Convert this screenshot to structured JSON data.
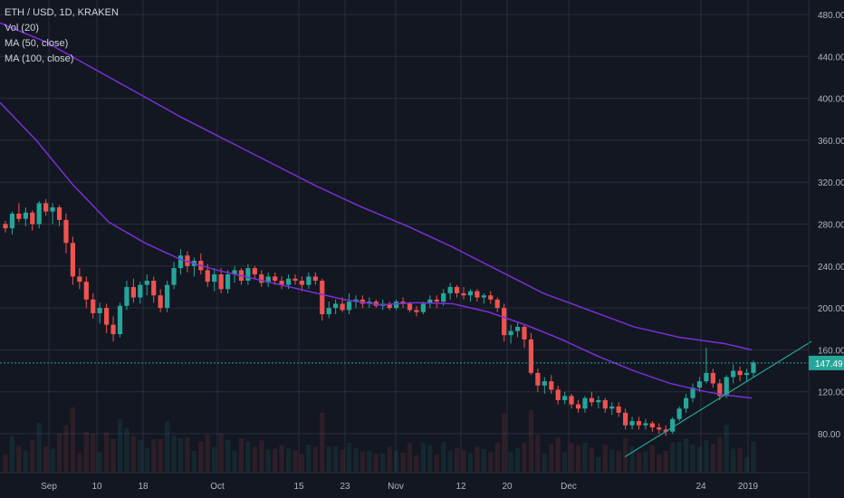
{
  "legend": {
    "symbol_line": "ETH / USD, 1D, KRAKEN",
    "vol_line": "Vol (20)",
    "ma50_line": "MA (50, close)",
    "ma100_line": "MA (100, close)"
  },
  "colors": {
    "background": "#131722",
    "grid": "#2a2e39",
    "up": "#26a69a",
    "down": "#ef5350",
    "ma": "#7b2fd6",
    "trendline": "#26a69a",
    "price_label": "#26a69a",
    "axis_text": "#b2b5be"
  },
  "chart_data": {
    "type": "candlestick",
    "y_axis_ticks": [
      "480.00",
      "440.00",
      "400.00",
      "360.00",
      "320.00",
      "280.00",
      "240.00",
      "200.00",
      "160.00",
      "120.00",
      "80.00"
    ],
    "x_axis_ticks": [
      "Sep",
      "10",
      "18",
      "Oct",
      "15",
      "23",
      "Nov",
      "12",
      "20",
      "Dec",
      "24",
      "2019"
    ],
    "ylim": [
      55,
      495
    ],
    "last_price": "147.49",
    "candles": [
      [
        280,
        283,
        272,
        276
      ],
      [
        276,
        292,
        270,
        290
      ],
      [
        290,
        300,
        282,
        285
      ],
      [
        285,
        296,
        278,
        291
      ],
      [
        291,
        293,
        274,
        280
      ],
      [
        280,
        302,
        276,
        300
      ],
      [
        300,
        304,
        288,
        292
      ],
      [
        292,
        300,
        280,
        296
      ],
      [
        296,
        298,
        278,
        284
      ],
      [
        284,
        290,
        252,
        262
      ],
      [
        262,
        268,
        222,
        230
      ],
      [
        230,
        238,
        218,
        225
      ],
      [
        225,
        230,
        200,
        208
      ],
      [
        208,
        214,
        190,
        195
      ],
      [
        195,
        205,
        185,
        200
      ],
      [
        200,
        204,
        176,
        184
      ],
      [
        184,
        192,
        168,
        175
      ],
      [
        175,
        205,
        172,
        202
      ],
      [
        202,
        226,
        198,
        220
      ],
      [
        220,
        228,
        205,
        210
      ],
      [
        210,
        225,
        204,
        222
      ],
      [
        222,
        232,
        212,
        226
      ],
      [
        226,
        230,
        205,
        212
      ],
      [
        212,
        218,
        196,
        200
      ],
      [
        200,
        226,
        196,
        222
      ],
      [
        222,
        244,
        218,
        238
      ],
      [
        238,
        256,
        232,
        250
      ],
      [
        250,
        254,
        234,
        240
      ],
      [
        240,
        248,
        230,
        245
      ],
      [
        245,
        252,
        232,
        236
      ],
      [
        236,
        242,
        220,
        225
      ],
      [
        225,
        238,
        216,
        232
      ],
      [
        232,
        238,
        214,
        218
      ],
      [
        218,
        236,
        214,
        232
      ],
      [
        232,
        240,
        224,
        236
      ],
      [
        236,
        238,
        222,
        226
      ],
      [
        226,
        242,
        222,
        238
      ],
      [
        238,
        240,
        228,
        232
      ],
      [
        232,
        236,
        220,
        224
      ],
      [
        224,
        234,
        220,
        230
      ],
      [
        230,
        234,
        222,
        226
      ],
      [
        226,
        230,
        218,
        222
      ],
      [
        222,
        232,
        218,
        228
      ],
      [
        228,
        232,
        222,
        226
      ],
      [
        226,
        230,
        216,
        222
      ],
      [
        222,
        234,
        218,
        230
      ],
      [
        230,
        234,
        222,
        226
      ],
      [
        226,
        228,
        188,
        194
      ],
      [
        194,
        206,
        190,
        200
      ],
      [
        200,
        208,
        194,
        204
      ],
      [
        204,
        210,
        196,
        198
      ],
      [
        198,
        214,
        194,
        206
      ],
      [
        206,
        212,
        200,
        208
      ],
      [
        208,
        212,
        200,
        204
      ],
      [
        204,
        210,
        200,
        206
      ],
      [
        206,
        208,
        200,
        202
      ],
      [
        202,
        208,
        198,
        204
      ],
      [
        204,
        206,
        198,
        200
      ],
      [
        200,
        208,
        198,
        206
      ],
      [
        206,
        210,
        200,
        204
      ],
      [
        204,
        206,
        196,
        198
      ],
      [
        198,
        202,
        192,
        196
      ],
      [
        196,
        206,
        194,
        204
      ],
      [
        204,
        212,
        200,
        208
      ],
      [
        208,
        212,
        200,
        206
      ],
      [
        206,
        218,
        202,
        214
      ],
      [
        214,
        224,
        208,
        220
      ],
      [
        220,
        222,
        210,
        214
      ],
      [
        214,
        220,
        208,
        212
      ],
      [
        212,
        218,
        206,
        216
      ],
      [
        216,
        218,
        206,
        210
      ],
      [
        210,
        214,
        204,
        212
      ],
      [
        212,
        216,
        204,
        208
      ],
      [
        208,
        210,
        196,
        200
      ],
      [
        200,
        204,
        168,
        174
      ],
      [
        174,
        184,
        166,
        178
      ],
      [
        178,
        186,
        172,
        182
      ],
      [
        182,
        184,
        162,
        170
      ],
      [
        170,
        176,
        136,
        138
      ],
      [
        138,
        142,
        120,
        126
      ],
      [
        126,
        134,
        118,
        130
      ],
      [
        130,
        136,
        118,
        122
      ],
      [
        122,
        126,
        108,
        112
      ],
      [
        112,
        120,
        108,
        116
      ],
      [
        116,
        118,
        104,
        108
      ],
      [
        108,
        112,
        100,
        104
      ],
      [
        104,
        116,
        100,
        114
      ],
      [
        114,
        120,
        106,
        110
      ],
      [
        110,
        116,
        104,
        112
      ],
      [
        112,
        114,
        100,
        104
      ],
      [
        104,
        110,
        98,
        106
      ],
      [
        106,
        110,
        96,
        100
      ],
      [
        100,
        104,
        84,
        88
      ],
      [
        88,
        96,
        84,
        92
      ],
      [
        92,
        96,
        84,
        88
      ],
      [
        88,
        94,
        84,
        90
      ],
      [
        90,
        92,
        82,
        86
      ],
      [
        86,
        90,
        80,
        84
      ],
      [
        84,
        88,
        78,
        82
      ],
      [
        82,
        96,
        80,
        94
      ],
      [
        94,
        106,
        92,
        104
      ],
      [
        104,
        118,
        100,
        114
      ],
      [
        114,
        128,
        110,
        124
      ],
      [
        124,
        134,
        120,
        130
      ],
      [
        130,
        162,
        128,
        138
      ],
      [
        138,
        142,
        124,
        128
      ],
      [
        128,
        132,
        112,
        116
      ],
      [
        116,
        136,
        114,
        134
      ],
      [
        134,
        146,
        128,
        140
      ],
      [
        140,
        144,
        130,
        136
      ],
      [
        136,
        142,
        130,
        138
      ],
      [
        138,
        150,
        134,
        148
      ]
    ],
    "ma50": [
      [
        0,
        396
      ],
      [
        40,
        360
      ],
      [
        80,
        318
      ],
      [
        120,
        282
      ],
      [
        160,
        262
      ],
      [
        200,
        246
      ],
      [
        240,
        236
      ],
      [
        280,
        228
      ],
      [
        330,
        218
      ],
      [
        380,
        208
      ],
      [
        420,
        203
      ],
      [
        460,
        205
      ],
      [
        500,
        204
      ],
      [
        540,
        196
      ],
      [
        580,
        184
      ],
      [
        620,
        170
      ],
      [
        660,
        154
      ],
      [
        700,
        140
      ],
      [
        740,
        128
      ],
      [
        780,
        120
      ],
      [
        800,
        117
      ],
      [
        830,
        114
      ]
    ],
    "ma100": [
      [
        0,
        472
      ],
      [
        50,
        454
      ],
      [
        100,
        430
      ],
      [
        150,
        406
      ],
      [
        200,
        382
      ],
      [
        250,
        360
      ],
      [
        300,
        338
      ],
      [
        350,
        316
      ],
      [
        400,
        296
      ],
      [
        450,
        278
      ],
      [
        500,
        258
      ],
      [
        550,
        236
      ],
      [
        600,
        214
      ],
      [
        650,
        198
      ],
      [
        700,
        182
      ],
      [
        750,
        172
      ],
      [
        800,
        166
      ],
      [
        830,
        160
      ]
    ],
    "trendline": [
      [
        690,
        58
      ],
      [
        896,
        168
      ]
    ]
  }
}
